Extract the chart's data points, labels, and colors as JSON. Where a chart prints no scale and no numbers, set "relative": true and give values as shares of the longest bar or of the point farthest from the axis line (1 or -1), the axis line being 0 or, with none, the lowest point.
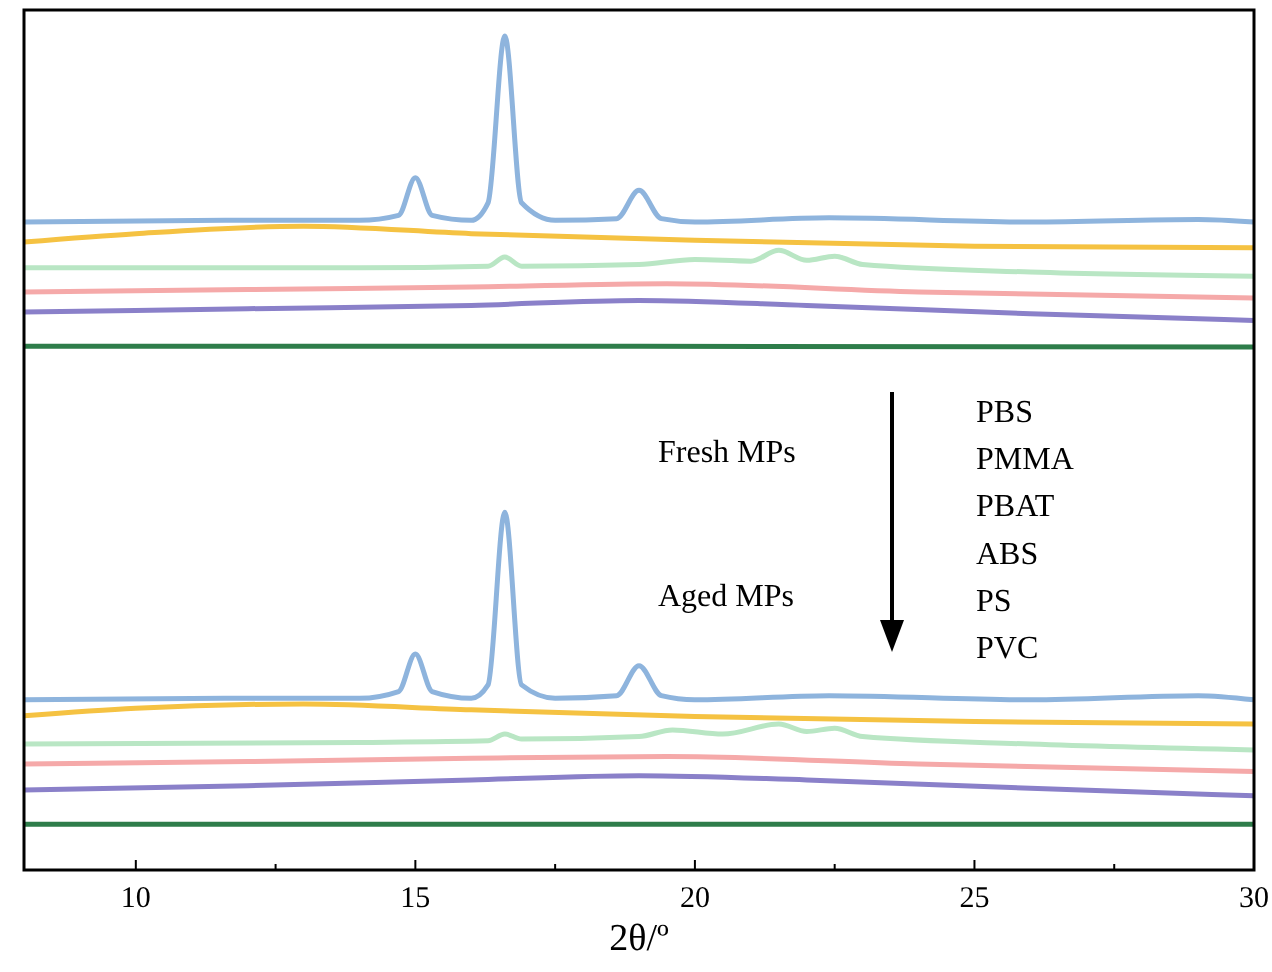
{
  "chart_data": {
    "type": "line",
    "relative": true,
    "xlabel": "2θ/º",
    "xlim": [
      8,
      30
    ],
    "xticks": [
      10,
      {
        "value": 12.5,
        "label": null
      },
      15,
      {
        "value": 17.5,
        "label": null
      },
      20,
      {
        "value": 22.5,
        "label": null
      },
      25,
      {
        "value": 27.5,
        "label": null
      },
      30
    ],
    "tick_labels": "x",
    "grid": false,
    "marker": "none",
    "line_style": "solid",
    "annotations": [
      "Fresh MPs",
      "Aged MPs",
      "PBS",
      "PMMA",
      "PBAT",
      "ABS",
      "PS",
      "PVC"
    ],
    "series": [
      {
        "color": "#8eb4dd",
        "x": [
          8,
          12,
          14,
          14.7,
          15,
          15.3,
          16,
          16.3,
          16.6,
          16.9,
          17.5,
          18.6,
          19,
          19.4,
          20,
          22.4,
          26,
          29,
          30
        ],
        "values": [
          0.777,
          0.779,
          0.779,
          0.785,
          0.83,
          0.785,
          0.779,
          0.8,
          1.0,
          0.8,
          0.779,
          0.781,
          0.815,
          0.781,
          0.777,
          0.782,
          0.777,
          0.78,
          0.777
        ]
      },
      {
        "color": "#f5c242",
        "x": [
          8,
          10,
          13,
          16,
          20,
          25,
          30
        ],
        "values": [
          0.753,
          0.763,
          0.772,
          0.763,
          0.755,
          0.748,
          0.746
        ]
      },
      {
        "color": "#b9e6c4",
        "x": [
          8,
          14,
          16.3,
          16.6,
          16.9,
          19,
          20,
          21,
          21.5,
          22,
          22.5,
          23,
          26,
          30
        ],
        "values": [
          0.722,
          0.722,
          0.724,
          0.735,
          0.724,
          0.726,
          0.732,
          0.73,
          0.743,
          0.731,
          0.736,
          0.726,
          0.717,
          0.712
        ]
      },
      {
        "color": "#f5a9a9",
        "x": [
          8,
          12,
          16,
          19.5,
          24,
          30
        ],
        "values": [
          0.693,
          0.696,
          0.699,
          0.703,
          0.693,
          0.686
        ]
      },
      {
        "color": "#8a80c9",
        "x": [
          8,
          12,
          16,
          19,
          22,
          26,
          30
        ],
        "values": [
          0.669,
          0.673,
          0.677,
          0.683,
          0.677,
          0.667,
          0.659
        ]
      },
      {
        "color": "#2e7d4a",
        "x": [
          8,
          19,
          30
        ],
        "values": [
          0.628,
          0.628,
          0.627
        ]
      },
      {
        "color": "#8eb4dd",
        "x": [
          8,
          12,
          14,
          14.7,
          15,
          15.3,
          16,
          16.3,
          16.6,
          16.9,
          17.5,
          18.6,
          19,
          19.4,
          20,
          22.4,
          26,
          29,
          30
        ],
        "values": [
          0.204,
          0.206,
          0.206,
          0.214,
          0.259,
          0.214,
          0.206,
          0.222,
          0.429,
          0.222,
          0.206,
          0.209,
          0.245,
          0.209,
          0.204,
          0.209,
          0.204,
          0.209,
          0.204
        ]
      },
      {
        "color": "#f5c242",
        "x": [
          8,
          10,
          13,
          16,
          20,
          25,
          30
        ],
        "values": [
          0.185,
          0.194,
          0.199,
          0.192,
          0.184,
          0.178,
          0.175
        ]
      },
      {
        "color": "#b9e6c4",
        "x": [
          8,
          14,
          16.3,
          16.6,
          16.9,
          19,
          19.6,
          20.5,
          21.5,
          22,
          22.5,
          23,
          26,
          30
        ],
        "values": [
          0.151,
          0.153,
          0.155,
          0.163,
          0.157,
          0.16,
          0.168,
          0.163,
          0.175,
          0.166,
          0.17,
          0.16,
          0.151,
          0.144
        ]
      },
      {
        "color": "#f5a9a9",
        "x": [
          8,
          12,
          16,
          19.5,
          24,
          30
        ],
        "values": [
          0.127,
          0.13,
          0.134,
          0.136,
          0.127,
          0.118
        ]
      },
      {
        "color": "#8a80c9",
        "x": [
          8,
          12,
          16,
          19,
          22,
          26,
          30
        ],
        "values": [
          0.096,
          0.101,
          0.108,
          0.113,
          0.108,
          0.098,
          0.089
        ]
      },
      {
        "color": "#2e7d4a",
        "x": [
          8,
          19,
          30
        ],
        "values": [
          0.055,
          0.055,
          0.055
        ]
      }
    ]
  }
}
